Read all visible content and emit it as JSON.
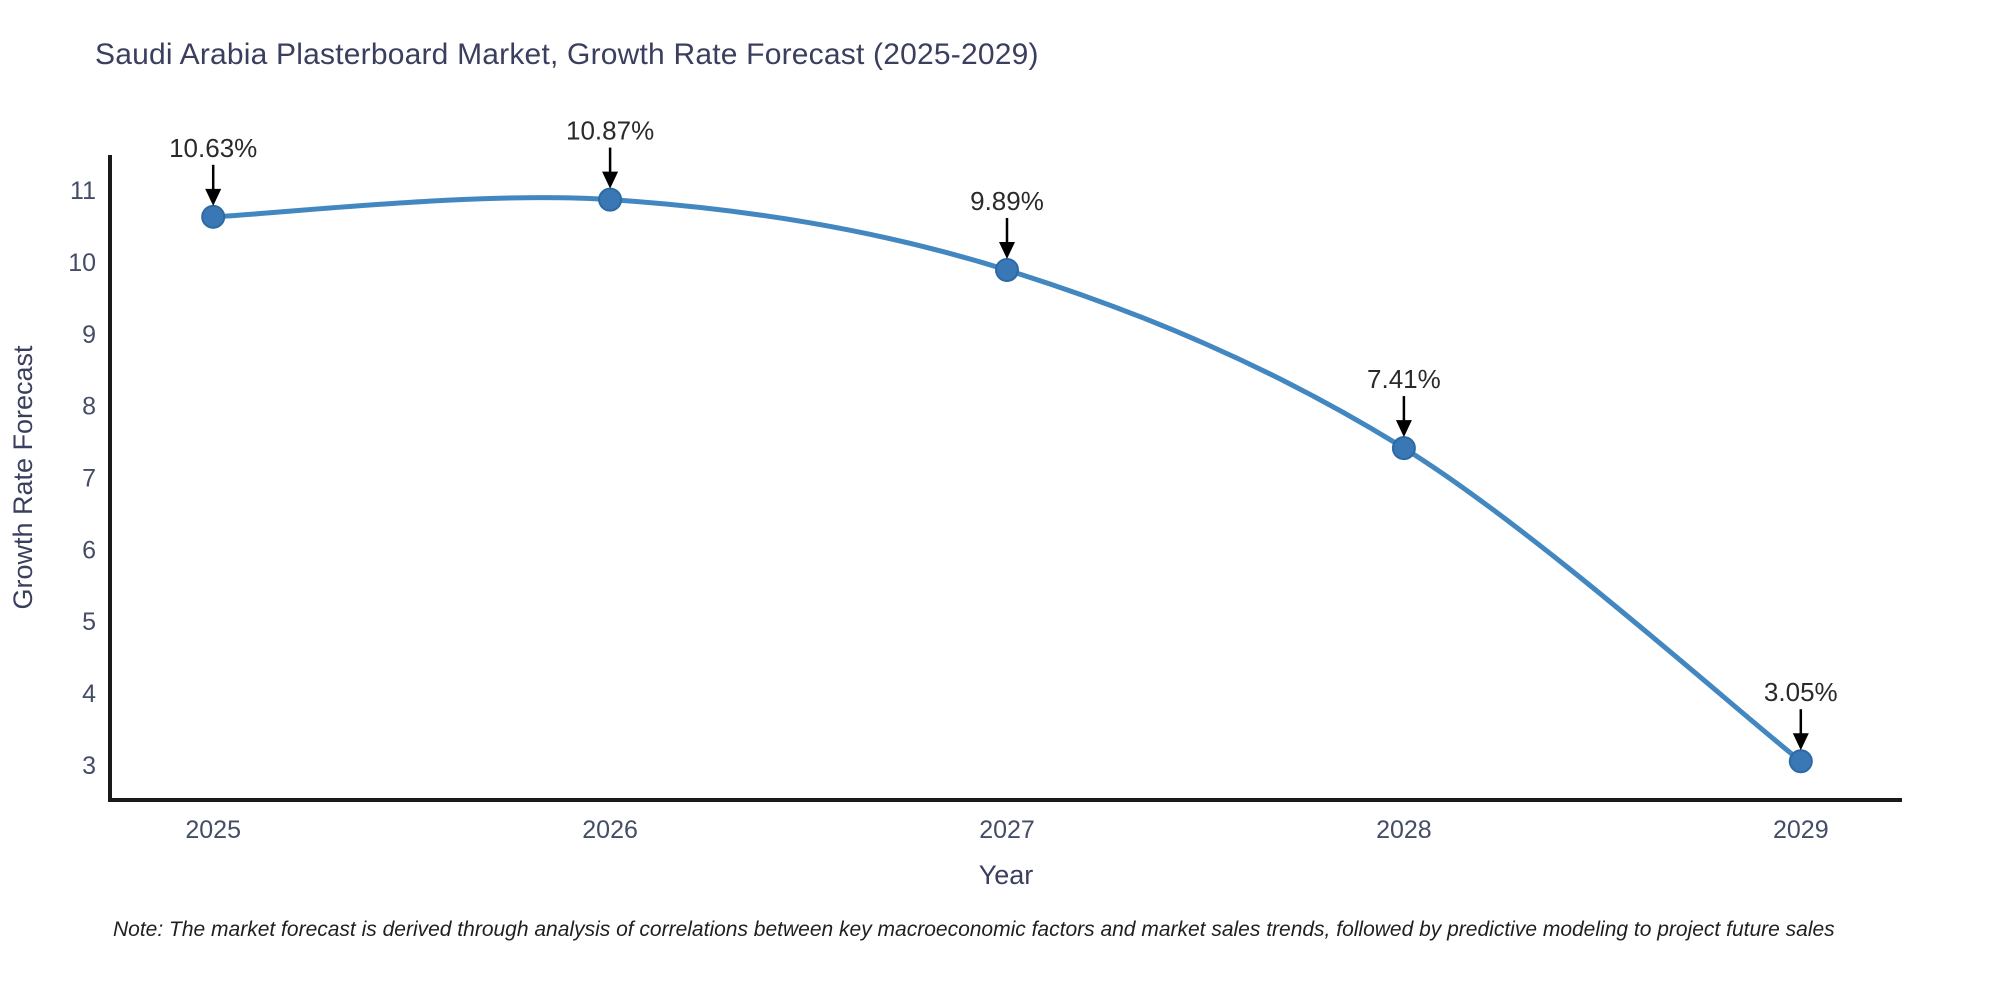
{
  "title": "Saudi Arabia Plasterboard Market, Growth Rate Forecast (2025-2029)",
  "note": "Note: The market forecast is derived through analysis of correlations between key macroeconomic factors and market sales trends, followed by predictive modeling to project future sales",
  "chart_data": {
    "type": "line",
    "line_shape": "spline",
    "title": "Saudi Arabia Plasterboard Market, Growth Rate Forecast (2025-2029)",
    "xlabel": "Year",
    "ylabel": "Growth Rate Forecast",
    "categories": [
      "2025",
      "2026",
      "2027",
      "2028",
      "2029"
    ],
    "x": [
      2025,
      2026,
      2027,
      2028,
      2029
    ],
    "values": [
      10.63,
      10.87,
      9.89,
      7.41,
      3.05
    ],
    "point_labels": [
      "10.63%",
      "10.87%",
      "9.89%",
      "7.41%",
      "3.05%"
    ],
    "yticks": [
      3,
      4,
      5,
      6,
      7,
      8,
      9,
      10,
      11
    ],
    "ylim": [
      2.51,
      11.63
    ],
    "grid": false,
    "legend": false,
    "colors": {
      "line": "#4387c1",
      "marker": "#3978b5",
      "marker_edge": "#2d6aa3",
      "axis": "#1a1a1a",
      "tick_label": "#444d66",
      "axis_title": "#3b3f5e",
      "annotation": "#2a2a2a",
      "arrow": "#000000"
    }
  }
}
